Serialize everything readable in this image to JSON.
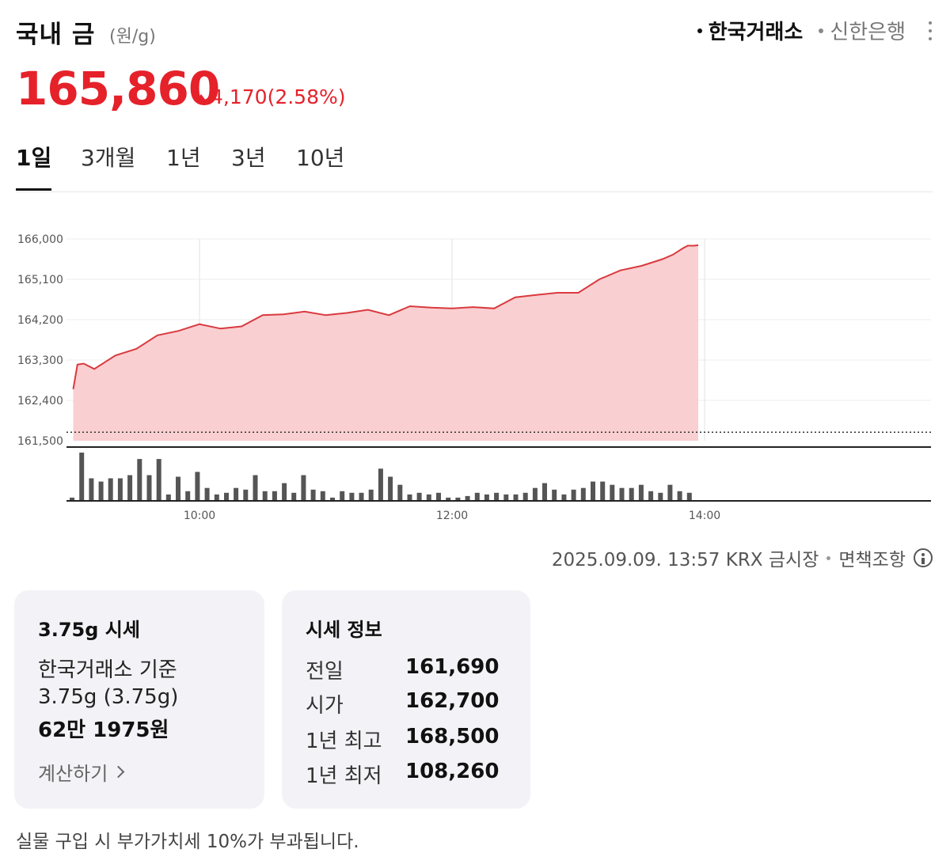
{
  "header": {
    "title": "국내 금",
    "unit": "(원/g)",
    "sources": [
      {
        "label": "한국거래소",
        "active": true
      },
      {
        "label": "신한은행",
        "active": false
      }
    ],
    "more_icon": "more-vertical-icon"
  },
  "price": {
    "value": "165,860",
    "change": "4,170",
    "change_pct": "(2.58%)",
    "direction_icon": "triangle-up-icon",
    "color": "#e5212a"
  },
  "tabs": [
    {
      "label": "1일",
      "active": true
    },
    {
      "label": "3개월",
      "active": false
    },
    {
      "label": "1년",
      "active": false
    },
    {
      "label": "3년",
      "active": false
    },
    {
      "label": "10년",
      "active": false
    }
  ],
  "chart_data": {
    "type": "area",
    "y_tick_labels": [
      "166,000",
      "165,100",
      "164,200",
      "163,300",
      "162,400",
      "161,500"
    ],
    "ylim": [
      161500,
      166000
    ],
    "x_tick_labels": [
      "10:00",
      "12:00",
      "14:00"
    ],
    "baseline_value": 161690,
    "line_color": "#d93a3f",
    "fill_color": "#f9cfd1",
    "price_series": {
      "x": [
        "09:00",
        "09:02",
        "09:05",
        "09:10",
        "09:15",
        "09:20",
        "09:30",
        "09:40",
        "09:50",
        "10:00",
        "10:10",
        "10:20",
        "10:30",
        "10:40",
        "10:50",
        "11:00",
        "11:10",
        "11:20",
        "11:30",
        "11:40",
        "11:50",
        "12:00",
        "12:10",
        "12:20",
        "12:30",
        "12:40",
        "12:50",
        "13:00",
        "13:10",
        "13:20",
        "13:30",
        "13:40",
        "13:45",
        "13:50",
        "13:52",
        "13:55",
        "13:57"
      ],
      "values": [
        162650,
        163200,
        163220,
        163100,
        163250,
        163400,
        163550,
        163850,
        163950,
        164100,
        164000,
        164050,
        164300,
        164320,
        164380,
        164300,
        164350,
        164420,
        164300,
        164500,
        164470,
        164450,
        164480,
        164450,
        164700,
        164750,
        164800,
        164800,
        165100,
        165300,
        165400,
        165550,
        165650,
        165800,
        165850,
        165850,
        165860
      ]
    },
    "volume_bars": [
      2,
      30,
      14,
      12,
      14,
      14,
      16,
      26,
      16,
      26,
      4,
      15,
      6,
      18,
      8,
      4,
      5,
      8,
      7,
      16,
      6,
      6,
      11,
      5,
      16,
      7,
      6,
      2,
      6,
      5,
      5,
      7,
      20,
      15,
      10,
      4,
      5,
      4,
      5,
      2,
      2,
      3,
      5,
      4,
      5,
      4,
      4,
      5,
      8,
      11,
      7,
      4,
      7,
      8,
      12,
      12,
      10,
      8,
      8,
      10,
      6,
      5,
      10,
      6,
      5
    ]
  },
  "meta": {
    "timestamp": "2025.09.09. 13:57 KRX 금시장",
    "disclaimer": "면책조항",
    "info_icon": "info-icon"
  },
  "card_375": {
    "title": "3.75g 시세",
    "basis": "한국거래소 기준",
    "weight": "3.75g (3.75g)",
    "amount": "62만 1975원",
    "calc_label": "계산하기"
  },
  "card_info": {
    "title": "시세 정보",
    "rows": [
      {
        "label": "전일",
        "value": "161,690"
      },
      {
        "label": "시가",
        "value": "162,700"
      },
      {
        "label": "1년 최고",
        "value": "168,500"
      },
      {
        "label": "1년 최저",
        "value": "108,260"
      }
    ]
  },
  "notice": "실물 구입 시 부가가치세 10%가 부과됩니다."
}
